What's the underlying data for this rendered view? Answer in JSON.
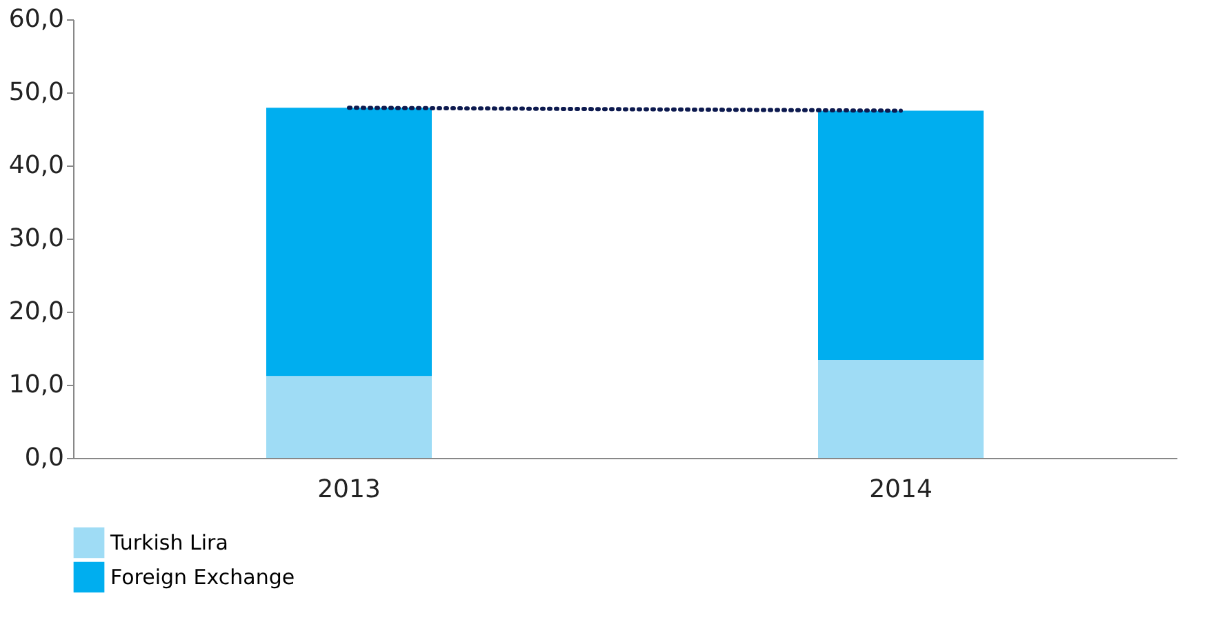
{
  "chart_data": {
    "type": "bar",
    "stacked": true,
    "categories": [
      "2013",
      "2014"
    ],
    "series": [
      {
        "name": "Turkish Lira",
        "color": "#9fdcf5",
        "values": [
          11.2,
          13.4
        ]
      },
      {
        "name": "Foreign Exchange",
        "color": "#00aeef",
        "values": [
          36.7,
          34.1
        ]
      },
      {
        "type": "line",
        "color": "#0d1a4f",
        "line_style": "dotted",
        "values": [
          47.9,
          47.5
        ]
      }
    ],
    "ylim": [
      0,
      60
    ],
    "yticks": [
      {
        "value": 0,
        "label": "0,0"
      },
      {
        "value": 10,
        "label": "10,0"
      },
      {
        "value": 20,
        "label": "20,0"
      },
      {
        "value": 30,
        "label": "30,0"
      },
      {
        "value": 40,
        "label": "40,0"
      },
      {
        "value": 50,
        "label": "50,0"
      },
      {
        "value": 60,
        "label": "60,0"
      }
    ],
    "grid": false,
    "legend": "bottom"
  }
}
